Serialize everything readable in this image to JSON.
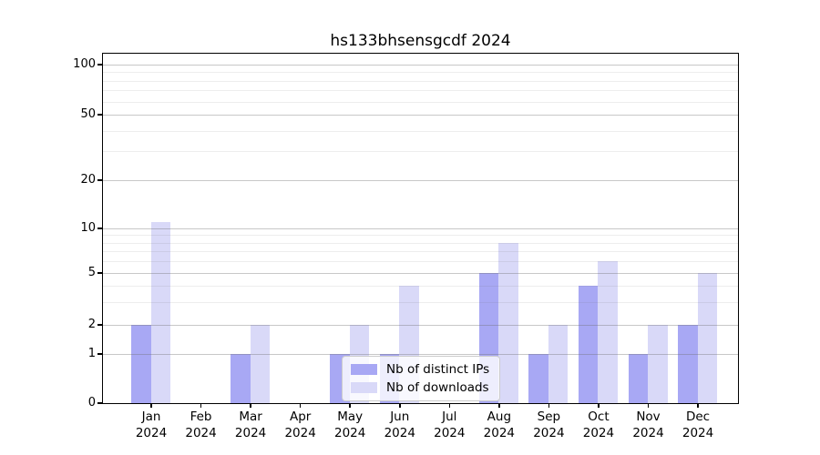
{
  "chart_data": {
    "type": "bar",
    "title": "hs133bhsensgcdf 2024",
    "categories": [
      "Jan",
      "Feb",
      "Mar",
      "Apr",
      "May",
      "Jun",
      "Jul",
      "Aug",
      "Sep",
      "Oct",
      "Nov",
      "Dec"
    ],
    "year_label": "2024",
    "series": [
      {
        "name": "Nb of distinct IPs",
        "color": "#a8a8f4",
        "values": [
          2,
          0,
          1,
          0,
          1,
          1,
          0,
          5,
          1,
          4,
          1,
          2
        ]
      },
      {
        "name": "Nb of downloads",
        "color": "#d9d9f8",
        "values": [
          11,
          0,
          2,
          0,
          2,
          4,
          0,
          8,
          2,
          6,
          2,
          5
        ]
      }
    ],
    "xlabel": "",
    "ylabel": "",
    "y_axis": {
      "scale": "log-like",
      "major_ticks": [
        0,
        1,
        2,
        5,
        10,
        20,
        50,
        100
      ],
      "minor_gridlines": [
        3,
        4,
        6,
        7,
        8,
        9,
        30,
        40,
        60,
        70,
        80,
        90
      ],
      "ylim": [
        0,
        115
      ]
    },
    "legend": {
      "position": "inside-lower-center",
      "entries": [
        "Nb of distinct IPs",
        "Nb of downloads"
      ]
    },
    "grid": {
      "enabled": true,
      "drawn_above_bars": true
    },
    "colors": {
      "distinct_ips": "#a8a8f4",
      "downloads": "#d9d9f8",
      "major_grid": "#c6c6c6",
      "minor_grid": "#ececec",
      "spine": "#000000"
    }
  }
}
